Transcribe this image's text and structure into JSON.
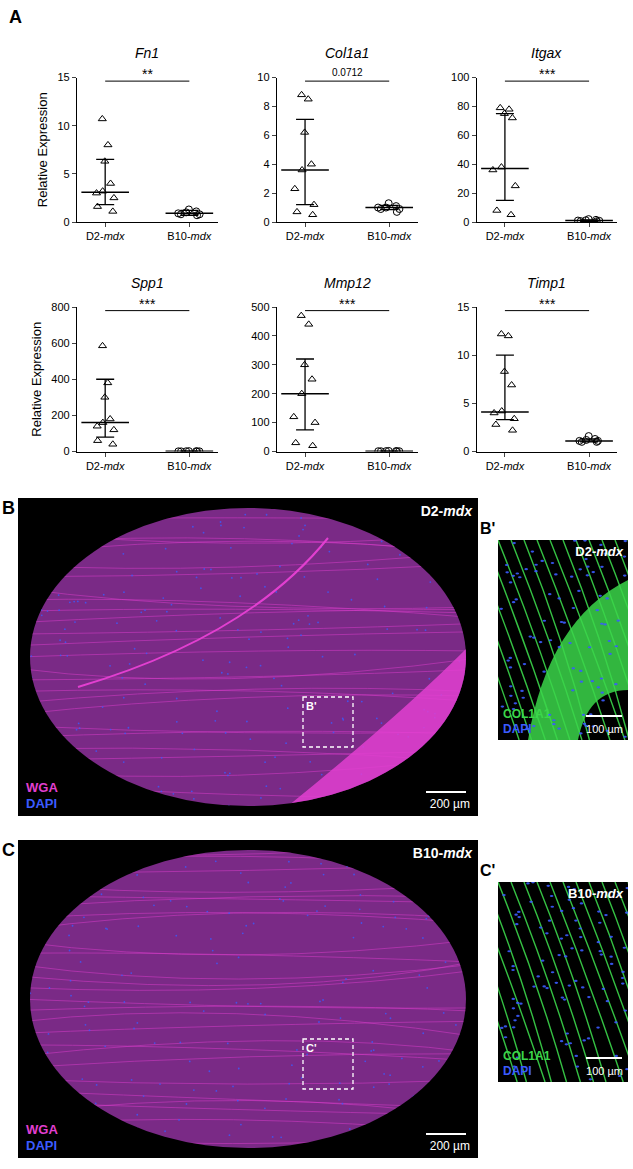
{
  "panel_label": "A",
  "chart_data": [
    {
      "type": "scatter",
      "title": "Fn1",
      "y_label": "Relative Expression",
      "categories": [
        "D2-mdx",
        "B10-mdx"
      ],
      "groups": [
        {
          "name": "D2-mdx",
          "marker": "triangle-up-open",
          "values": [
            10.7,
            8.0,
            6.3,
            4.0,
            3.2,
            3.0,
            2.5,
            1.6,
            1.1
          ],
          "median": 3.1,
          "iqr": [
            1.8,
            6.5
          ]
        },
        {
          "name": "B10-mdx",
          "marker": "circle-open",
          "values": [
            1.3,
            1.1,
            1.0,
            0.9,
            0.8,
            0.7,
            0.8
          ],
          "median": 0.9,
          "iqr": [
            0.7,
            1.2
          ]
        }
      ],
      "significance": "**",
      "ylim": [
        0,
        15
      ],
      "yticks": [
        0,
        5,
        10,
        15
      ],
      "grid": false
    },
    {
      "type": "scatter",
      "title": "Col1a1",
      "categories": [
        "D2-mdx",
        "B10-mdx"
      ],
      "groups": [
        {
          "name": "D2-mdx",
          "marker": "triangle-up-open",
          "values": [
            8.8,
            8.5,
            6.2,
            4.0,
            3.6,
            2.3,
            1.2,
            0.7,
            0.5
          ],
          "median": 3.6,
          "iqr": [
            1.2,
            7.1
          ]
        },
        {
          "name": "B10-mdx",
          "marker": "circle-open",
          "values": [
            1.3,
            1.1,
            1.0,
            1.0,
            0.9,
            0.9,
            0.7
          ],
          "median": 1.0,
          "iqr": [
            0.85,
            1.15
          ]
        }
      ],
      "significance": "0.0712",
      "ylim": [
        0,
        10
      ],
      "yticks": [
        0,
        2,
        4,
        6,
        8,
        10
      ],
      "grid": false
    },
    {
      "type": "scatter",
      "title": "Itgax",
      "categories": [
        "D2-mdx",
        "B10-mdx"
      ],
      "groups": [
        {
          "name": "D2-mdx",
          "marker": "triangle-up-open",
          "values": [
            79,
            78,
            75,
            72,
            38,
            36,
            25,
            8,
            5
          ],
          "median": 37,
          "iqr": [
            15,
            75
          ]
        },
        {
          "name": "B10-mdx",
          "marker": "circle-open",
          "values": [
            2,
            1.5,
            1.2,
            1,
            0.8,
            0.6,
            0.5
          ],
          "median": 1,
          "iqr": [
            0.5,
            1.5
          ]
        }
      ],
      "significance": "***",
      "ylim": [
        0,
        100
      ],
      "yticks": [
        0,
        20,
        40,
        60,
        80,
        100
      ],
      "grid": false
    },
    {
      "type": "scatter",
      "title": "Spp1",
      "y_label": "Relative Expression",
      "categories": [
        "D2-mdx",
        "B10-mdx"
      ],
      "groups": [
        {
          "name": "D2-mdx",
          "marker": "triangle-up-open",
          "values": [
            585,
            380,
            300,
            180,
            160,
            140,
            120,
            60,
            40
          ],
          "median": 160,
          "iqr": [
            80,
            400
          ]
        },
        {
          "name": "B10-mdx",
          "marker": "circle-open",
          "values": [
            2,
            1.5,
            1.2,
            1,
            1,
            0.8,
            0.6
          ],
          "median": 1,
          "iqr": [
            0.7,
            1.4
          ]
        }
      ],
      "significance": "***",
      "ylim": [
        0,
        800
      ],
      "yticks": [
        0,
        200,
        400,
        600,
        800
      ],
      "grid": false
    },
    {
      "type": "scatter",
      "title": "Mmp12",
      "categories": [
        "D2-mdx",
        "B10-mdx"
      ],
      "groups": [
        {
          "name": "D2-mdx",
          "marker": "triangle-up-open",
          "values": [
            470,
            440,
            300,
            250,
            200,
            120,
            100,
            30,
            20
          ],
          "median": 200,
          "iqr": [
            75,
            320
          ]
        },
        {
          "name": "B10-mdx",
          "marker": "circle-open",
          "values": [
            2,
            1.5,
            1.2,
            1,
            1,
            0.8,
            0.6
          ],
          "median": 1,
          "iqr": [
            0.7,
            1.4
          ]
        }
      ],
      "significance": "***",
      "ylim": [
        0,
        500
      ],
      "yticks": [
        0,
        100,
        200,
        300,
        400,
        500
      ],
      "grid": false
    },
    {
      "type": "scatter",
      "title": "Timp1",
      "categories": [
        "D2-mdx",
        "B10-mdx"
      ],
      "groups": [
        {
          "name": "D2-mdx",
          "marker": "triangle-up-open",
          "values": [
            12.2,
            12.0,
            8.3,
            6.9,
            4.2,
            4.0,
            3.4,
            2.8,
            2.2
          ],
          "median": 4.1,
          "iqr": [
            3.3,
            10.0
          ]
        },
        {
          "name": "B10-mdx",
          "marker": "circle-open",
          "values": [
            1.6,
            1.3,
            1.2,
            1.1,
            1.1,
            1.0,
            1.0
          ],
          "median": 1.1,
          "iqr": [
            1.0,
            1.3
          ]
        }
      ],
      "significance": "***",
      "ylim": [
        0,
        15
      ],
      "yticks": [
        0,
        5,
        10,
        15
      ],
      "grid": false
    }
  ],
  "image_panels": [
    {
      "letter": "B",
      "kind": "section",
      "strain": "D2-mdx",
      "lesion": true,
      "inset": "B'",
      "scale_bar": "200 µm",
      "stains": [
        {
          "name": "WGA",
          "color": "#e23fd0"
        },
        {
          "name": "DAPI",
          "color": "#3b5bff"
        }
      ]
    },
    {
      "letter": "B'",
      "kind": "zoom",
      "strain": "D2-mdx",
      "lesion": true,
      "scale_bar": "100 µm",
      "stains": [
        {
          "name": "COL1A1",
          "color": "#3bd64a"
        },
        {
          "name": "DAPI",
          "color": "#3b5bff"
        }
      ]
    },
    {
      "letter": "C",
      "kind": "section",
      "strain": "B10-mdx",
      "lesion": false,
      "inset": "C'",
      "scale_bar": "200 µm",
      "stains": [
        {
          "name": "WGA",
          "color": "#e23fd0"
        },
        {
          "name": "DAPI",
          "color": "#3b5bff"
        }
      ]
    },
    {
      "letter": "C'",
      "kind": "zoom",
      "strain": "B10-mdx",
      "lesion": false,
      "scale_bar": "100 µm",
      "stains": [
        {
          "name": "COL1A1",
          "color": "#3bd64a"
        },
        {
          "name": "DAPI",
          "color": "#3b5bff"
        }
      ]
    }
  ]
}
